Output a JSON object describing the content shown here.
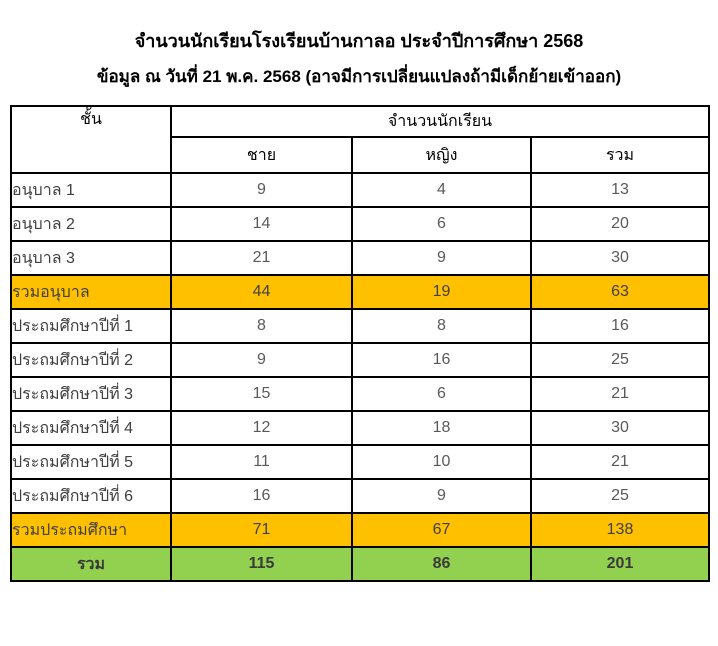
{
  "page": {
    "title": "จำนวนนักเรียนโรงเรียนบ้านกาลอ ประจำปีการศึกษา 2568",
    "subtitle": "ข้อมูล ณ วันที่ 21 พ.ค. 2568 (อาจมีการเปลี่ยนแปลงถ้ามีเด็กย้ายเข้าออก)"
  },
  "colors": {
    "subtotal_row_bg": "#FFC000",
    "total_row_bg": "#92D050",
    "border": "#000000",
    "header_text": "#000000",
    "body_text": "#595959"
  },
  "table": {
    "class_column_header": "ชั้น",
    "group_header": "จำนวนนักเรียน",
    "sub_headers": [
      "ชาย",
      "หญิง",
      "รวม"
    ],
    "rows": [
      {
        "label": "อนุบาล 1",
        "male": 9,
        "female": 4,
        "total": 13,
        "style": "normal"
      },
      {
        "label": "อนุบาล 2",
        "male": 14,
        "female": 6,
        "total": 20,
        "style": "normal"
      },
      {
        "label": "อนุบาล 3",
        "male": 21,
        "female": 9,
        "total": 30,
        "style": "normal"
      },
      {
        "label": "รวมอนุบาล",
        "male": 44,
        "female": 19,
        "total": 63,
        "style": "subtotal"
      },
      {
        "label": "ประถมศึกษาปีที่ 1",
        "male": 8,
        "female": 8,
        "total": 16,
        "style": "normal"
      },
      {
        "label": "ประถมศึกษาปีที่ 2",
        "male": 9,
        "female": 16,
        "total": 25,
        "style": "normal"
      },
      {
        "label": "ประถมศึกษาปีที่ 3",
        "male": 15,
        "female": 6,
        "total": 21,
        "style": "normal"
      },
      {
        "label": "ประถมศึกษาปีที่ 4",
        "male": 12,
        "female": 18,
        "total": 30,
        "style": "normal"
      },
      {
        "label": "ประถมศึกษาปีที่ 5",
        "male": 11,
        "female": 10,
        "total": 21,
        "style": "normal"
      },
      {
        "label": "ประถมศึกษาปีที่ 6",
        "male": 16,
        "female": 9,
        "total": 25,
        "style": "normal"
      },
      {
        "label": "รวมประถมศึกษา",
        "male": 71,
        "female": 67,
        "total": 138,
        "style": "subtotal"
      },
      {
        "label": "รวม",
        "male": 115,
        "female": 86,
        "total": 201,
        "style": "total"
      }
    ]
  }
}
